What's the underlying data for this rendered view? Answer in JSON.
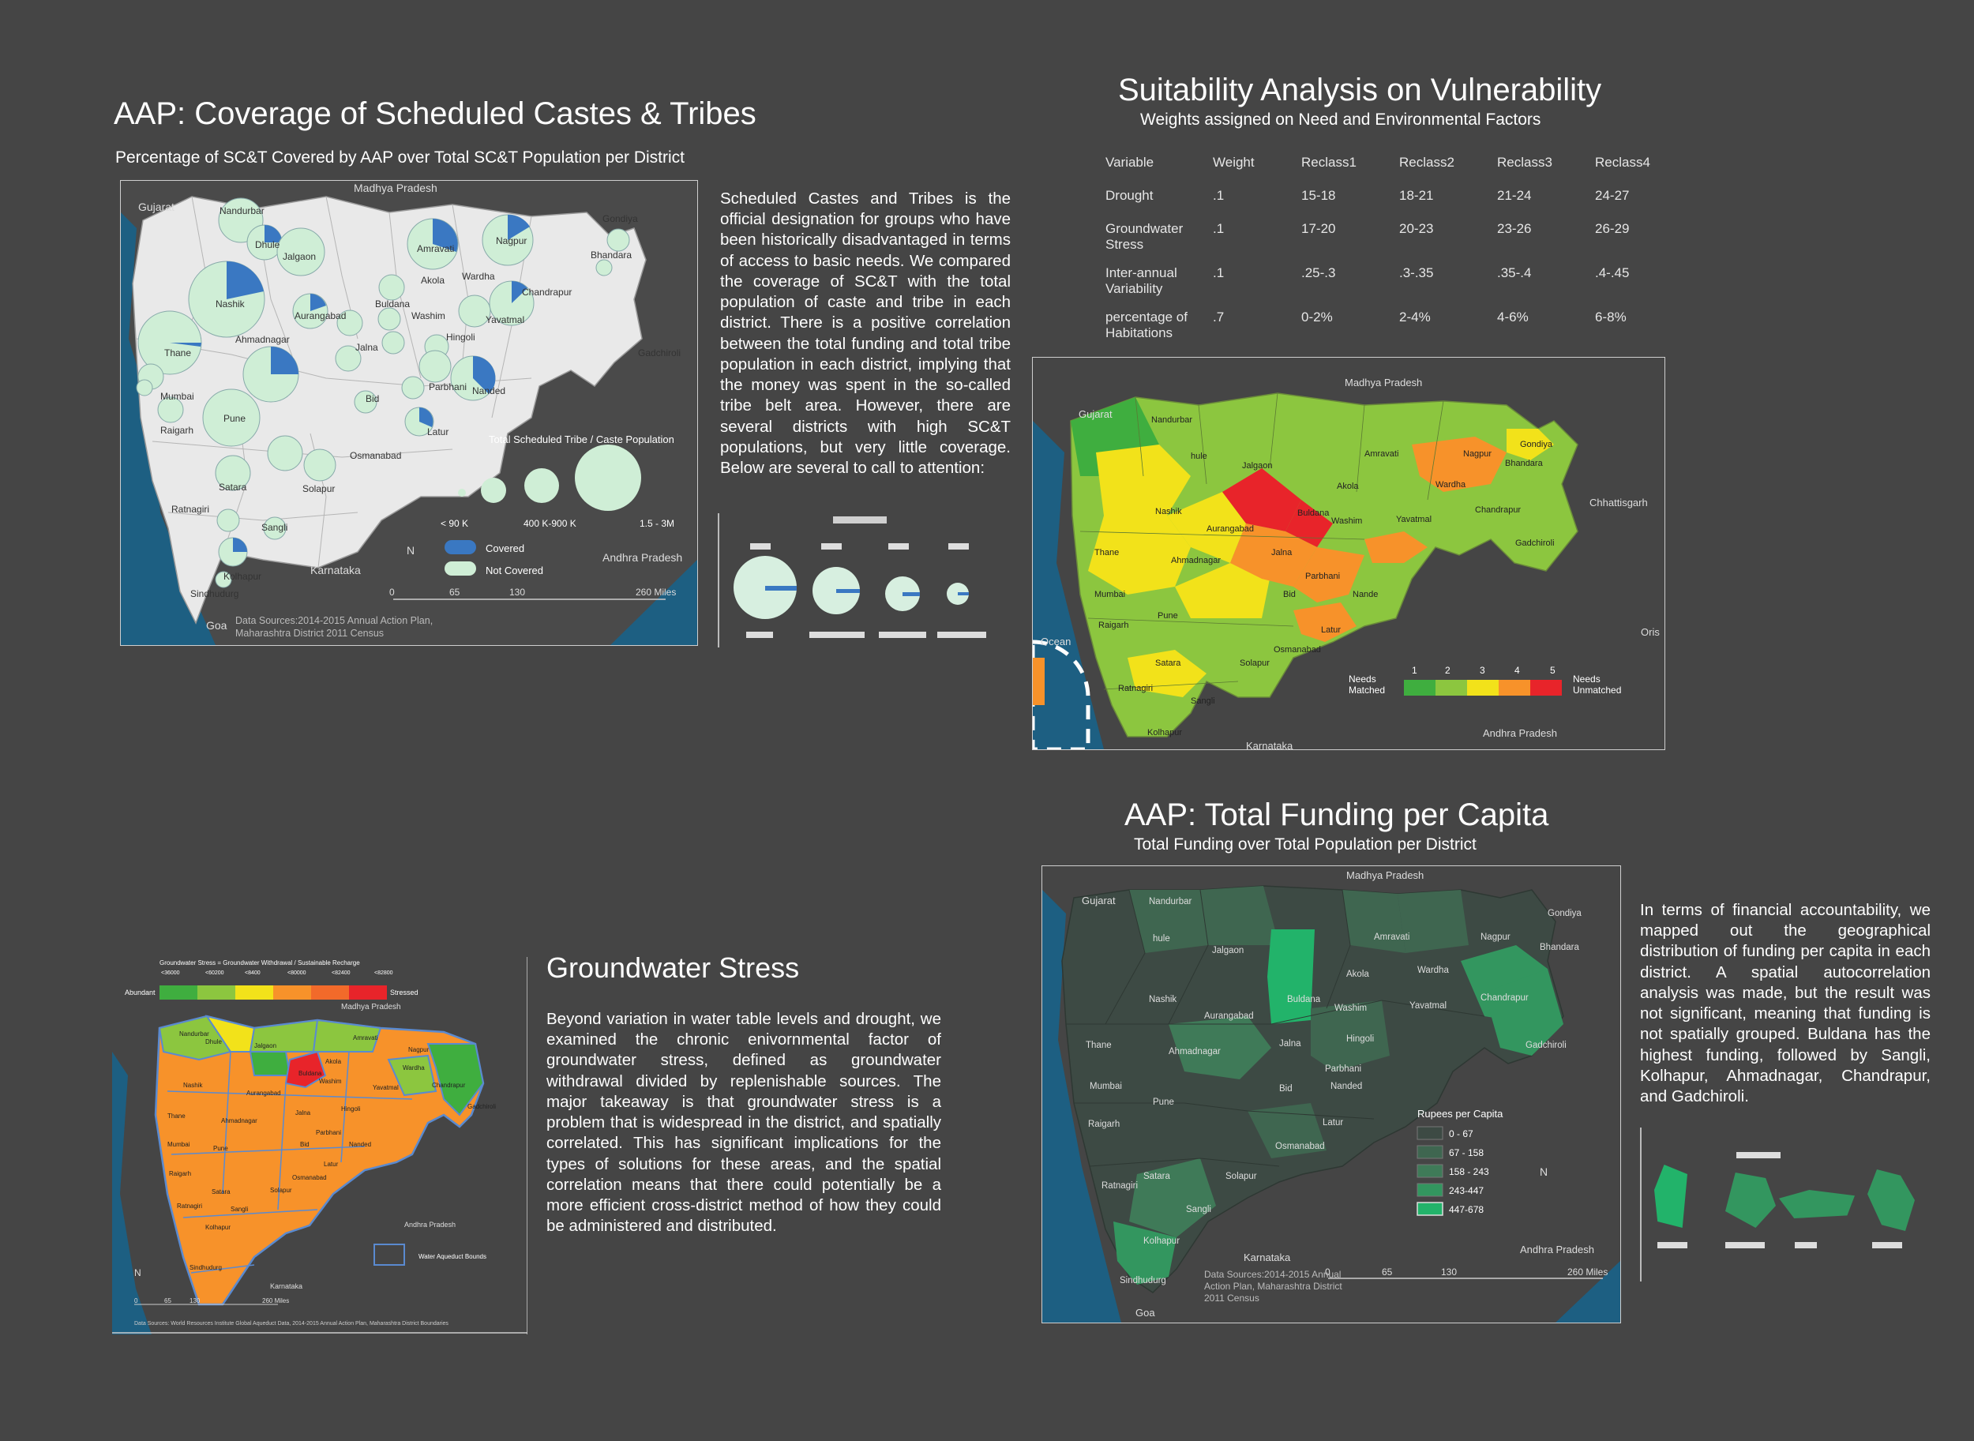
{
  "sct": {
    "title": "AAP: Coverage of Scheduled Castes & Tribes",
    "subtitle": "Percentage of SC&T Covered by AAP over Total SC&T Population per District",
    "body": "Scheduled Castes and Tribes is the official designation for groups who have been historically disadvantaged in terms of access to basic needs. We compared the coverage of SC&T with the total population of caste and tribe in each district. There is a positive correlation between the total funding and total tribe population in each district, implying that the money was spent in the so-called tribe belt area. However, there are several districts with high SC&T populations, but very little coverage. Below are several to call to attention:",
    "map": {
      "neighbors": [
        "Gujarat",
        "Madhya Pradesh",
        "Karnataka",
        "Andhra Pradesh",
        "Goa"
      ],
      "districts": [
        "Nandurbar",
        "Dhule",
        "Jalgaon",
        "Amravati",
        "Nagpur",
        "Gondiya",
        "Bhandara",
        "Nashik",
        "Akola",
        "Wardha",
        "Aurangabad",
        "Buldana",
        "Washim",
        "Chandrapur",
        "Thane",
        "Ahmadnagar",
        "Jalna",
        "Hingoli",
        "Yavatmal",
        "Gadchiroli",
        "Mumbai",
        "Raigarh",
        "Pune",
        "Bid",
        "Parbhani",
        "Nanded",
        "Latur",
        "Osmanabad",
        "Satara",
        "Solapur",
        "Ratnagiri",
        "Sangli",
        "Kolhapur",
        "Sindhudurg"
      ],
      "size_legend_title": "Total Scheduled Tribe / Caste Population",
      "size_labels": [
        "< 90 K",
        "400 K-900 K",
        "1.5 - 3M"
      ],
      "legend_covered": "Covered",
      "legend_not_covered": "Not Covered",
      "north": "N",
      "scale": [
        "0",
        "65",
        "130",
        "260 Miles"
      ],
      "sources": "Data Sources:2014-2015 Annual Action Plan, Maharashtra District 2011 Census"
    },
    "colors": {
      "covered": "#3a78c2",
      "not_covered": "#cfeed6"
    }
  },
  "suit": {
    "title": "Suitability Analysis on Vulnerability",
    "subtitle": "Weights assigned on Need and Environmental Factors",
    "table": {
      "headers": [
        "Variable",
        "Weight",
        "Reclass1",
        "Reclass2",
        "Reclass3",
        "Reclass4"
      ],
      "rows": [
        [
          "Drought",
          ".1",
          "15-18",
          "18-21",
          "21-24",
          "24-27"
        ],
        [
          "Groundwater Stress",
          ".1",
          "17-20",
          "20-23",
          "23-26",
          "26-29"
        ],
        [
          "Inter-annual Variability",
          ".1",
          ".25-.3",
          ".3-.35",
          ".35-.4",
          ".4-.45"
        ],
        [
          "percentage of Habitations",
          ".7",
          "0-2%",
          "2-4%",
          "4-6%",
          "6-8%"
        ]
      ]
    },
    "map": {
      "neighbors": [
        "Gujarat",
        "Madhya Pradesh",
        "Chhattisgarh",
        "Andhra Pradesh",
        "Karnataka",
        "Ocean",
        "Oris"
      ],
      "districts": [
        "Nandurbar",
        "hule",
        "Jalgaon",
        "Amravati",
        "Nagpur",
        "Gondiya",
        "Bhandara",
        "Nashik",
        "Akola",
        "Wardha",
        "Buldana",
        "Washim",
        "Aurangabad",
        "Yavatmal",
        "Chandrapur",
        "Jalna",
        "Gadchiroli",
        "Thane",
        "Ahmadnagar",
        "Parbhani",
        "Bid",
        "Nande",
        "Mumbai",
        "Raigarh",
        "Pune",
        "Latur",
        "Osmanabad",
        "Satara",
        "Solapur",
        "Ratnagiri",
        "Sangli",
        "Kolhapur"
      ],
      "scale_values": [
        "1",
        "2",
        "3",
        "4",
        "5"
      ],
      "needs_matched": "Needs Matched",
      "needs_unmatched": "Needs Unmatched"
    },
    "colors": [
      "#3fae3f",
      "#8cc63f",
      "#f2e21a",
      "#f7922a",
      "#e8242a"
    ]
  },
  "ground": {
    "title": "Groundwater Stress",
    "body": "Beyond variation in water table levels and drought, we examined the chronic enivornmental factor of groundwater stress, defined as groundwater withdrawal divided by replenishable sources. The major takeaway is that groundwater stress is a problem that is widespread in the district, and spatially correlated. This has significant implications for the types of solutions for these areas, and the spatial correlation means that there could potentially be a more efficient cross-district method of how they could be administered and distributed.",
    "map": {
      "legend_title": "Groundwater Stress = Groundwater Withdrawal / Sustainable Recharge",
      "legend_ticks": [
        "<36000",
        "<60200",
        "<8400",
        "<80000",
        "<82400",
        "<82800"
      ],
      "abundant": "Abundant",
      "stressed": "Stressed",
      "neighbors": [
        "Madhya Pradesh",
        "Andhra Pradesh",
        "Karnataka"
      ],
      "districts": [
        "Nandurbar",
        "Dhule",
        "Jalgaon",
        "Amravati",
        "Nagpur",
        "Akola",
        "Wardha",
        "Nashik",
        "Aurangabad",
        "Buldana",
        "Washim",
        "Yavatmal",
        "Chandrapur",
        "Gadchiroli",
        "Thane",
        "Ahmadnagar",
        "Jalna",
        "Hingoli",
        "Mumbai",
        "Pune",
        "Bid",
        "Nanded",
        "Parbhani",
        "Latur",
        "Raigarh",
        "Satara",
        "Solapur",
        "Osmanabad",
        "Ratnagiri",
        "Sangli",
        "Kolhapur",
        "Sindhudurg"
      ],
      "legend_bounds": "Water Aqueduct Bounds",
      "north": "N",
      "scale": [
        "0",
        "65",
        "130",
        "260 Miles"
      ],
      "sources": "Data Sources: World Resources Institute Global Aqueduct Data, 2014-2015 Annual Action Plan, Maharashtra District Boundaries"
    },
    "colors": [
      "#3fae3f",
      "#8cc63f",
      "#f2e21a",
      "#f7922a",
      "#f26a2a",
      "#e8242a"
    ]
  },
  "fund": {
    "title": "AAP: Total Funding per Capita",
    "subtitle": "Total Funding over Total Population per District",
    "body": "In terms of financial accountability, we mapped out the geographical distribution of funding per capita in each district. A spatial autocorrelation analysis was made, but the result was not significant, meaning that funding is not spatially grouped. Buldana has the highest funding, followed by Sangli, Kolhapur, Ahmadnagar, Chandrapur, and Gadchiroli.",
    "map": {
      "neighbors": [
        "Gujarat",
        "Madhya Pradesh",
        "Karnataka",
        "Andhra Pradesh",
        "Goa"
      ],
      "districts": [
        "Nandurbar",
        "hule",
        "Jalgaon",
        "Amravati",
        "Nagpur",
        "Gondiya",
        "Bhandara",
        "Akola",
        "Wardha",
        "Nashik",
        "Aurangabad",
        "Buldana",
        "Washim",
        "Yavatmal",
        "Chandrapur",
        "Thane",
        "Ahmadnagar",
        "Jalna",
        "Hingoli",
        "Gadchiroli",
        "Parbhani",
        "Mumbai",
        "Bid",
        "Nanded",
        "Pune",
        "Raigarh",
        "Latur",
        "Osmanabad",
        "Satara",
        "Solapur",
        "Ratnagiri",
        "Sangli",
        "Kolhapur",
        "Sindhudurg"
      ],
      "legend_title": "Rupees per Capita",
      "legend_items": [
        "0 - 67",
        "67 - 158",
        "158 - 243",
        "243-447",
        "447-678"
      ],
      "north": "N",
      "scale": [
        "0",
        "65",
        "130",
        "260 Miles"
      ],
      "sources": "Data Sources:2014-2015 Annual Action Plan, Maharashtra District 2011 Census"
    },
    "colors": [
      "#3d4a44",
      "#3f6650",
      "#3f7a58",
      "#33965f",
      "#22b36a"
    ]
  }
}
